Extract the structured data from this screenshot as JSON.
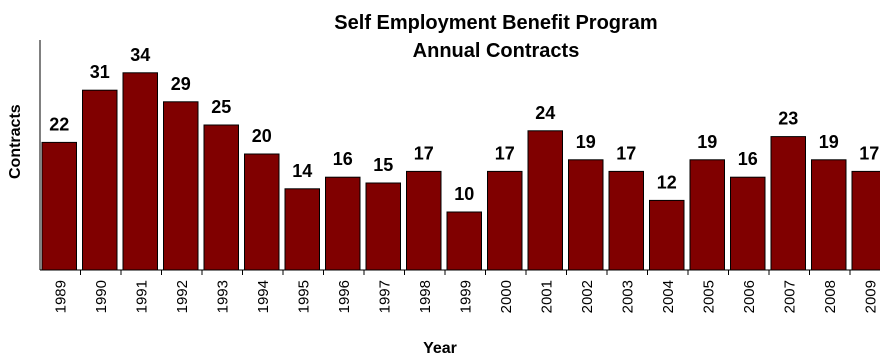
{
  "chart_data": {
    "type": "bar",
    "title": "Self Employment Benefit Program",
    "subtitle": "Annual Contracts",
    "xlabel": "Year",
    "ylabel": "Contracts",
    "categories": [
      "1989",
      "1990",
      "1991",
      "1992",
      "1993",
      "1994",
      "1995",
      "1996",
      "1997",
      "1998",
      "1999",
      "2000",
      "2001",
      "2002",
      "2003",
      "2004",
      "2005",
      "2006",
      "2007",
      "2008",
      "2009"
    ],
    "values": [
      22,
      31,
      34,
      29,
      25,
      20,
      14,
      16,
      15,
      17,
      10,
      17,
      24,
      19,
      17,
      12,
      19,
      16,
      23,
      19,
      17
    ],
    "ylim": [
      0,
      36
    ],
    "bar_color": "#800000",
    "grid": false,
    "legend": "none"
  }
}
